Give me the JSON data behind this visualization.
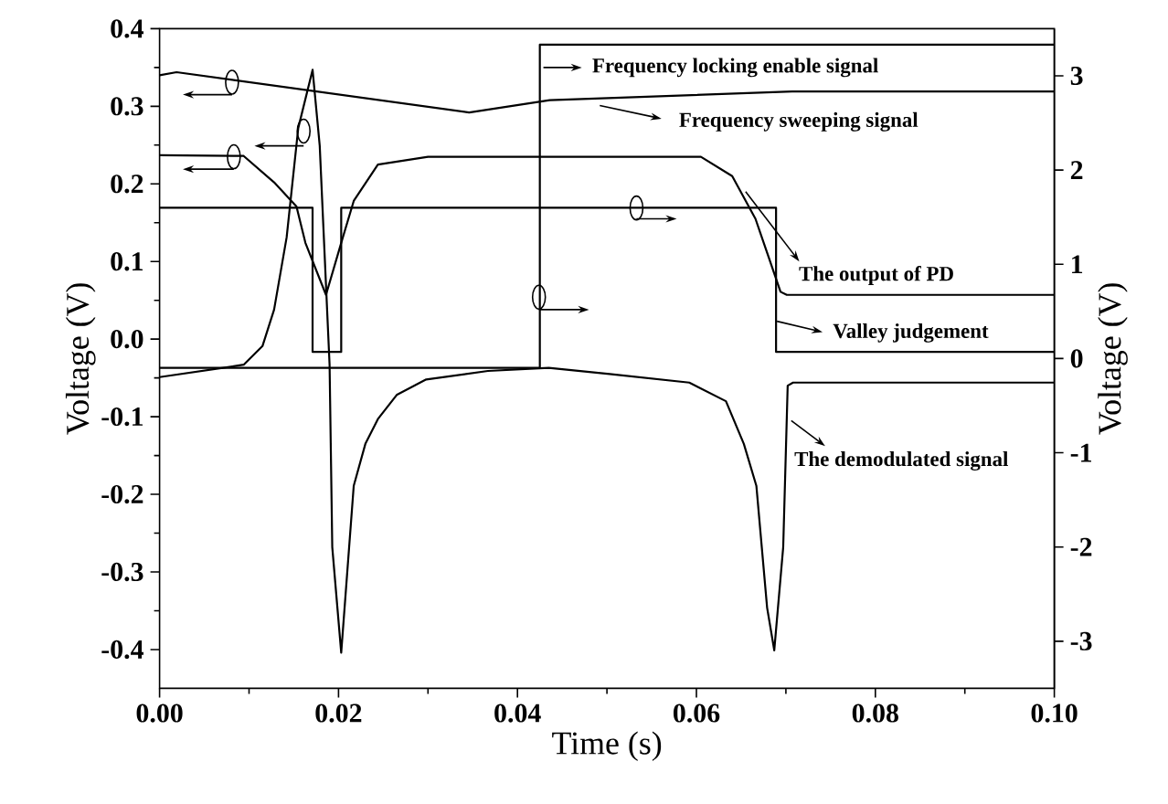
{
  "chart_data": {
    "type": "line",
    "xlabel": "Time (s)",
    "ylabel": "Voltage (V)",
    "y2label": "Voltage (V)",
    "xlim": [
      0,
      0.1
    ],
    "ylim": [
      -0.45,
      0.4
    ],
    "y2lim": [
      -3.5,
      3.5
    ],
    "xticks": [
      {
        "value": 0,
        "label": "0.00"
      },
      {
        "value": 0.01,
        "label": null
      },
      {
        "value": 0.02,
        "label": "0.02"
      },
      {
        "value": 0.03,
        "label": null
      },
      {
        "value": 0.04,
        "label": "0.04"
      },
      {
        "value": 0.05,
        "label": null
      },
      {
        "value": 0.06,
        "label": "0.06"
      },
      {
        "value": 0.07,
        "label": null
      },
      {
        "value": 0.08,
        "label": "0.08"
      },
      {
        "value": 0.09,
        "label": null
      },
      {
        "value": 0.1,
        "label": "0.10"
      }
    ],
    "yticks": [
      -0.4,
      {
        "value": -0.35,
        "label": null
      },
      -0.3,
      {
        "value": -0.25,
        "label": null
      },
      -0.2,
      {
        "value": -0.15,
        "label": null
      },
      -0.1,
      {
        "value": -0.05,
        "label": null
      },
      {
        "value": 0,
        "label": "0.0"
      },
      {
        "value": 0.05,
        "label": null
      },
      0.1,
      {
        "value": 0.15,
        "label": null
      },
      0.2,
      {
        "value": 0.25,
        "label": null
      },
      0.3,
      {
        "value": 0.35,
        "label": null
      },
      0.4
    ],
    "y2ticks": [
      -3,
      -2,
      -1,
      0,
      1,
      2,
      3
    ],
    "legend": "top right",
    "series": [
      {
        "name": "Frequency sweeping signal",
        "color": "#000000",
        "x": [
          0,
          0.0019,
          0.0346,
          0.0436,
          0.0707,
          0.1
        ],
        "values": [
          0.34,
          0.344,
          0.292,
          0.308,
          0.319,
          0.319
        ]
      },
      {
        "name": "The output of PD",
        "color": "#000000",
        "x": [
          0,
          0.0094,
          0.0128,
          0.0153,
          0.0163,
          0.0186,
          0.0203,
          0.0217,
          0.0244,
          0.03,
          0.0605,
          0.064,
          0.0666,
          0.068,
          0.0694,
          0.0701,
          0.1
        ],
        "values": [
          0.237,
          0.236,
          0.202,
          0.171,
          0.124,
          0.057,
          0.124,
          0.178,
          0.225,
          0.235,
          0.235,
          0.21,
          0.155,
          0.108,
          0.061,
          0.057,
          0.057
        ]
      },
      {
        "name": "Valley judgement",
        "color": "#000000",
        "axis": "y2",
        "x": [
          0,
          0.0171,
          0.0171,
          0.0203,
          0.0203,
          0.0689,
          0.0689,
          0.1
        ],
        "values": [
          1.6,
          1.6,
          0.07,
          0.07,
          1.6,
          1.6,
          0.07,
          0.07
        ]
      },
      {
        "name": "Frequency locking enable signal",
        "color": "#000000",
        "axis": "y2",
        "x": [
          0,
          0.0425,
          0.0425,
          0.1
        ],
        "values": [
          -0.1,
          -0.1,
          3.33,
          3.33
        ]
      },
      {
        "name": "The demodulated signal",
        "color": "#000000",
        "x": [
          0,
          0.0094,
          0.0115,
          0.0128,
          0.0142,
          0.0155,
          0.0171,
          0.0179,
          0.019,
          0.0193,
          0.0203,
          0.0217,
          0.023,
          0.0244,
          0.0265,
          0.0298,
          0.0367,
          0.0435,
          0.0503,
          0.0592,
          0.0633,
          0.0653,
          0.0667,
          0.0679,
          0.0687,
          0.0697,
          0.0702,
          0.0708,
          0.1
        ],
        "values": [
          -0.049,
          -0.033,
          -0.009,
          0.038,
          0.131,
          0.272,
          0.347,
          0.249,
          -0.033,
          -0.268,
          -0.404,
          -0.189,
          -0.135,
          -0.103,
          -0.072,
          -0.052,
          -0.041,
          -0.037,
          -0.045,
          -0.056,
          -0.08,
          -0.135,
          -0.189,
          -0.346,
          -0.401,
          -0.268,
          -0.06,
          -0.056,
          -0.056
        ]
      }
    ]
  }
}
